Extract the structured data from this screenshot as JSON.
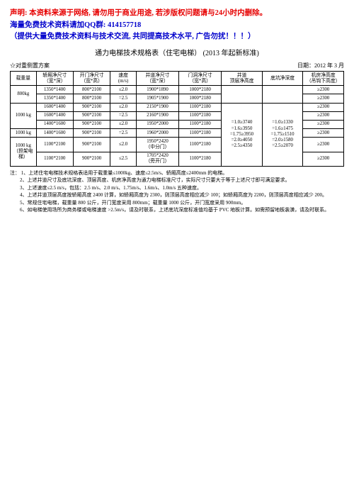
{
  "header": {
    "disclaimer": "声明: 本资料来源于网络, 请勿用于商业用途, 若涉版权问题请与24小时内删除。",
    "qq_line": "海量免费技术资料请加QQ群: 414157718",
    "subtitle": "（提供大量免费技术资料与技术交流, 共同提高技术水平, 广告勿扰！！！）"
  },
  "title": {
    "main": "通力电梯技术规格表（住宅电梯）",
    "year": "(2013 年起新标准)"
  },
  "meta": {
    "left": "☆对重侧置方案",
    "right": "日期：2012 年 3 月"
  },
  "columns": {
    "load": "载重量",
    "shaft": "轿厢净尺寸\n（宽*深）",
    "door": "开门净尺寸\n（宽*高）",
    "speed": "速度\n(m/s)",
    "pit": "井道净尺寸\n（宽*深）",
    "cab": "门洞净尺寸\n（宽*高）",
    "overhead": "井道\n顶层净高度",
    "pitdepth": "底坑净深度",
    "mroom": "机房净高度\n（吊钩下高度）"
  },
  "rows": [
    {
      "load": "800kg",
      "rs": 2,
      "shaft": "1350*1400",
      "door": "800*2100",
      "speed": "≤2.0",
      "pit": "1900*1890",
      "cab": "1000*2180",
      "mroom": "≥2300"
    },
    {
      "shaft": "1350*1400",
      "door": "800*2100",
      "speed": "=2.5",
      "pit": "1905*1900",
      "cab": "1000*2180",
      "mroom": "≥2300"
    },
    {
      "load": "1000 kg",
      "rs": 3,
      "shaft": "1600*1400",
      "door": "900*2100",
      "speed": "≤2.0",
      "pit": "2150*1900",
      "cab": "1100*2180",
      "mroom": "≥2300",
      "overhead": "=1.0≥3740\n=1.6≥3950\n=1.75≥3950\n=2.0≥4050\n=2.5≥4350",
      "ors": 6,
      "pitdepth": "=1.0≥1330\n=1.6≥1475\n=1.75≥1510\n=2.0≥1580\n=2.5≥2070",
      "prs": 6
    },
    {
      "shaft": "1600*1400",
      "door": "900*2100",
      "speed": "=2.5",
      "pit": "2160*1900",
      "cab": "1100*2180",
      "mroom": "≥2300"
    },
    {
      "shaft": "1400*1600",
      "door": "900*2100",
      "speed": "≤2.0",
      "pit": "1950*2000",
      "cab": "1100*2180",
      "mroom": "≥2300"
    },
    {
      "load": "1000 kg",
      "rs": 1,
      "shaft": "1400*1600",
      "door": "900*2100",
      "speed": "=2.5",
      "pit": "1960*2000",
      "cab": "1100*2180",
      "mroom": "≥2300"
    },
    {
      "load": "1000 kg\n（担架电梯）",
      "rs": 2,
      "shaft": "1100*2100",
      "door": "900*2100",
      "speed": "≤2.0",
      "pit": "1950*2420\n（中分门）",
      "cab": "1100*2180",
      "mroom": "≥2300"
    },
    {
      "shaft": "1100*2100",
      "door": "900*2100",
      "speed": "≤2.5",
      "pit": "1705*2420\n（旁开门）",
      "cab": "1100*2180",
      "mroom": "≥2300"
    }
  ],
  "notes": {
    "lead": "注：",
    "items": [
      "1、上述住宅电梯技术规格表适用于载重量≤1000kg、速度≤2.5m/s、轿厢高度≤2400mm 的电梯。",
      "2、上述井道尺寸及底坑深度、顶层高度、机房净高度为通力电梯标准尺寸，实际尺寸只要大于等于上述尺寸即可满足要求。",
      "3、上述速度≤2.5 m/s，包括：2.5 m/s、2.0 m/s、1.75m/s、1.6m/s、1.0m/s 五种速度。",
      "4、上述井道顶层高度按轿厢高度 2400 计算，如轿厢高度为 2300，则顶层高度相应减少 100；如轿厢高度为 2200，则顶层高度相应减少 200。",
      "5、常规住宅电梯，载重量 800 公斤，开门宽度采用 800mm；载重量 1000 公斤，开门宽度采用 900mm。",
      "6、如电梯使用场所为商务楼或电梯速度 >2.5m/s，请及时联系，上述底坑深度标准值均基于 PVC 地板计算。如需预留地板装潢，请及时联系。"
    ]
  }
}
